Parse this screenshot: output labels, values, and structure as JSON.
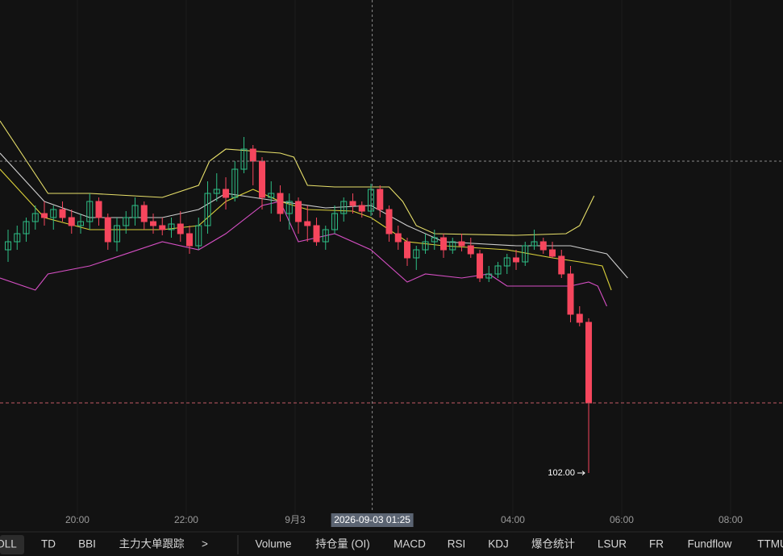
{
  "chart_data": {
    "type": "candlestick",
    "ylim": [
      99.35,
      131.35
    ],
    "xlim": [
      -0.89,
      85.42
    ],
    "grid": true,
    "xticks": [
      {
        "value": 7.64,
        "label": "20:00"
      },
      {
        "value": 19.64,
        "label": "22:00"
      },
      {
        "value": 31.64,
        "label": "9月3"
      },
      {
        "value": 55.64,
        "label": "04:00"
      },
      {
        "value": 67.64,
        "label": "06:00"
      },
      {
        "value": 79.64,
        "label": "08:00"
      }
    ],
    "up_color": "#2ebd85",
    "down_color": "#f6465d",
    "candles": [
      [
        115.85,
        117.1,
        115.1,
        116.35
      ],
      [
        116.35,
        117.35,
        115.85,
        116.85
      ],
      [
        116.85,
        117.85,
        116.35,
        117.6
      ],
      [
        117.6,
        118.6,
        117.1,
        118.1
      ],
      [
        118.1,
        118.85,
        117.35,
        117.85
      ],
      [
        117.85,
        118.6,
        117.1,
        118.35
      ],
      [
        118.35,
        118.85,
        117.6,
        117.85
      ],
      [
        117.85,
        118.35,
        116.85,
        117.35
      ],
      [
        117.35,
        118.1,
        116.85,
        117.6
      ],
      [
        117.6,
        119.35,
        117.1,
        118.85
      ],
      [
        118.85,
        119.1,
        117.35,
        117.85
      ],
      [
        117.85,
        118.1,
        115.85,
        116.35
      ],
      [
        116.35,
        117.85,
        115.75,
        117.35
      ],
      [
        117.35,
        118.25,
        116.85,
        117.85
      ],
      [
        117.85,
        119.1,
        117.35,
        118.6
      ],
      [
        118.6,
        118.85,
        117.1,
        117.6
      ],
      [
        117.6,
        118.1,
        116.85,
        117.35
      ],
      [
        117.35,
        117.85,
        116.75,
        117.1
      ],
      [
        117.1,
        117.85,
        116.6,
        117.45
      ],
      [
        117.45,
        118.25,
        116.35,
        116.85
      ],
      [
        116.85,
        117.35,
        115.6,
        116.1
      ],
      [
        116.1,
        117.85,
        115.85,
        117.35
      ],
      [
        117.35,
        120.1,
        116.85,
        119.35
      ],
      [
        119.35,
        120.6,
        118.85,
        119.6
      ],
      [
        119.6,
        120.35,
        118.35,
        119.1
      ],
      [
        119.1,
        121.35,
        118.85,
        120.85
      ],
      [
        120.85,
        122.85,
        120.6,
        122.1
      ],
      [
        122.1,
        122.35,
        119.85,
        121.35
      ],
      [
        121.35,
        121.6,
        118.35,
        119.1
      ],
      [
        119.1,
        120.1,
        118.1,
        119.35
      ],
      [
        119.35,
        119.85,
        117.6,
        118.1
      ],
      [
        118.1,
        119.35,
        117.1,
        118.85
      ],
      [
        118.85,
        119.1,
        116.85,
        117.6
      ],
      [
        117.6,
        118.6,
        116.35,
        117.35
      ],
      [
        117.35,
        117.85,
        116.1,
        116.35
      ],
      [
        116.35,
        117.35,
        115.85,
        117.1
      ],
      [
        117.1,
        118.6,
        116.85,
        118.1
      ],
      [
        118.1,
        119.1,
        117.6,
        118.85
      ],
      [
        118.85,
        119.35,
        118.1,
        118.6
      ],
      [
        118.6,
        118.85,
        117.85,
        118.25
      ],
      [
        118.25,
        119.95,
        117.95,
        119.6
      ],
      [
        119.6,
        119.85,
        117.85,
        118.35
      ],
      [
        118.35,
        118.6,
        116.35,
        116.85
      ],
      [
        116.85,
        117.35,
        115.85,
        116.35
      ],
      [
        116.35,
        116.6,
        114.85,
        115.35
      ],
      [
        115.35,
        116.1,
        114.6,
        115.85
      ],
      [
        115.85,
        116.85,
        115.6,
        116.35
      ],
      [
        116.35,
        117.1,
        115.85,
        116.6
      ],
      [
        116.6,
        116.85,
        115.35,
        115.85
      ],
      [
        115.85,
        116.6,
        115.6,
        116.35
      ],
      [
        116.35,
        116.85,
        115.75,
        116.1
      ],
      [
        116.1,
        116.6,
        115.35,
        115.6
      ],
      [
        115.6,
        115.85,
        113.85,
        114.1
      ],
      [
        114.1,
        114.85,
        113.85,
        114.35
      ],
      [
        114.35,
        115.1,
        114.1,
        114.85
      ],
      [
        114.85,
        115.6,
        114.35,
        115.35
      ],
      [
        115.35,
        115.85,
        114.6,
        115.1
      ],
      [
        115.1,
        116.35,
        114.85,
        116.1
      ],
      [
        116.1,
        117.1,
        115.85,
        116.35
      ],
      [
        116.35,
        116.6,
        115.6,
        115.85
      ],
      [
        115.85,
        116.35,
        115.35,
        115.45
      ],
      [
        115.45,
        115.85,
        114.1,
        114.35
      ],
      [
        114.35,
        114.85,
        111.35,
        111.85
      ],
      [
        111.85,
        112.35,
        111.1,
        111.35
      ],
      [
        111.35,
        111.6,
        102,
        106.35
      ]
    ],
    "lines": [
      {
        "color": "#e8e06a",
        "x": [
          -0.89,
          4.4,
          9,
          17,
          21,
          22.2,
          24,
          30,
          31.5,
          33,
          36,
          42,
          43.5,
          45,
          47,
          56,
          61.5,
          63,
          64.6
        ],
        "values": [
          123.85,
          119.35,
          119.35,
          119.1,
          119.85,
          121.35,
          122.1,
          121.85,
          121.6,
          119.85,
          119.75,
          119.75,
          118.85,
          117.35,
          116.85,
          116.75,
          116.85,
          117.35,
          119.2
        ]
      },
      {
        "color": "#cfcfcf",
        "x": [
          -0.89,
          4,
          9,
          17,
          21,
          24,
          27,
          30,
          35,
          40,
          44,
          48,
          56,
          62,
          66,
          68.3
        ],
        "values": [
          121.85,
          118.85,
          117.85,
          117.85,
          118.35,
          119.35,
          119.1,
          118.85,
          118.45,
          118.6,
          117.35,
          116.35,
          116.1,
          116.1,
          115.6,
          114.1
        ]
      },
      {
        "color": "#d64fc4",
        "x": [
          -0.89,
          3,
          4.4,
          9,
          17,
          21,
          24,
          28,
          30,
          32,
          36,
          40,
          44,
          46,
          50,
          53,
          55,
          62,
          64,
          65,
          66
        ],
        "values": [
          114.1,
          113.35,
          114.35,
          114.85,
          116.35,
          115.85,
          116.85,
          118.6,
          118.85,
          116.35,
          116.85,
          115.85,
          113.85,
          114.35,
          114.1,
          114.35,
          113.6,
          113.6,
          113.85,
          113.6,
          112.35
        ]
      },
      {
        "color": "#d9cf3a",
        "x": [
          -0.89,
          4,
          9,
          17,
          21,
          24,
          27,
          30,
          33,
          38,
          40,
          44,
          48,
          55,
          60,
          63,
          65.5,
          66.5
        ],
        "values": [
          120.85,
          117.85,
          117.1,
          117.1,
          117.35,
          118.85,
          119.6,
          118.85,
          118.35,
          118.25,
          117.85,
          116.35,
          116.1,
          115.85,
          115.35,
          115.1,
          114.85,
          113.35
        ]
      }
    ],
    "last_price": 106.35,
    "low_label": "102.00",
    "crosshair": {
      "x": 40.14,
      "y": 121.35,
      "label": "2026-09-03 01:25"
    }
  },
  "toolbar": [
    "OLL",
    "TD",
    "BBI",
    "主力大单跟踪",
    ">",
    "Volume",
    "持仓量 (OI)",
    "MACD",
    "RSI",
    "KDJ",
    "爆仓统计",
    "LSUR",
    "FR",
    "Fundflow",
    "TTMU"
  ]
}
